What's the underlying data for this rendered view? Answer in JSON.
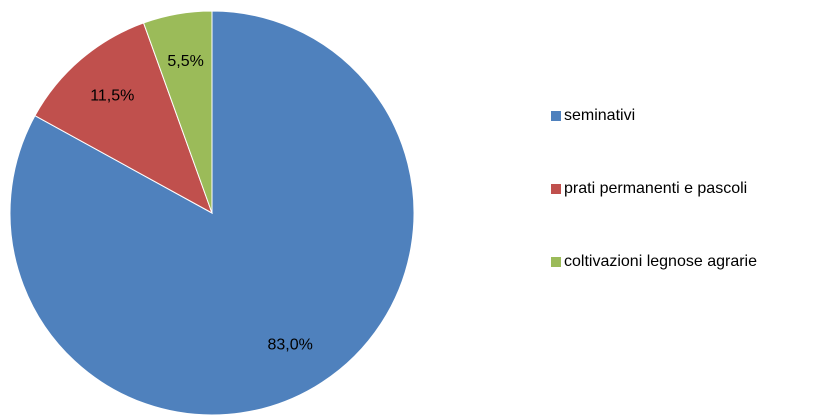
{
  "chart_data": {
    "type": "pie",
    "categories": [
      "seminativi",
      "prati permanenti e pascoli",
      "coltivazioni legnose agrarie"
    ],
    "values": [
      83.0,
      11.5,
      5.5
    ],
    "value_labels": [
      "83,0%",
      "11,5%",
      "5,5%"
    ],
    "colors": [
      "#4f81bd",
      "#c0504d",
      "#9bbb59"
    ],
    "legend": "right"
  }
}
